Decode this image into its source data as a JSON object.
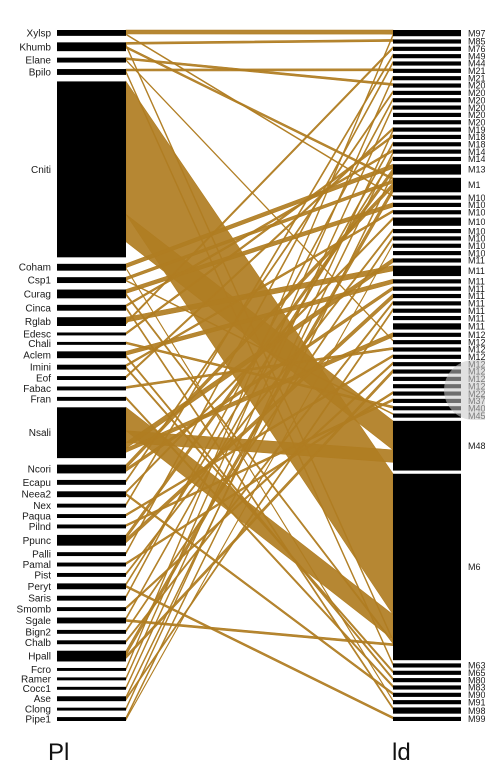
{
  "diagram": {
    "type": "bipartite-plot",
    "link_color": "#b07d22",
    "bar_color": "#000000",
    "left_title": "Pl",
    "right_title": "ld",
    "left_nodes": [
      {
        "name": "Xylsp",
        "size": 0.3
      },
      {
        "name": "Khumb",
        "size": 0.45
      },
      {
        "name": "Elane",
        "size": 0.25
      },
      {
        "name": "Bpilo",
        "size": 0.3
      },
      {
        "name": "Cniti",
        "size": 9.0
      },
      {
        "name": "Coham",
        "size": 0.35
      },
      {
        "name": "Csp1",
        "size": 0.3
      },
      {
        "name": "Curag",
        "size": 0.45
      },
      {
        "name": "Cinca",
        "size": 0.3
      },
      {
        "name": "Rglab",
        "size": 0.45
      },
      {
        "name": "Edesc",
        "size": 0.15
      },
      {
        "name": "Chali",
        "size": 0.15
      },
      {
        "name": "Aclem",
        "size": 0.35
      },
      {
        "name": "Imini",
        "size": 0.25
      },
      {
        "name": "Eof",
        "size": 0.2
      },
      {
        "name": "Fabac",
        "size": 0.2
      },
      {
        "name": "Fran",
        "size": 0.2
      },
      {
        "name": "Nsali",
        "size": 2.6
      },
      {
        "name": "Ncori",
        "size": 0.45
      },
      {
        "name": "Ecapu",
        "size": 0.25
      },
      {
        "name": "Neea2",
        "size": 0.3
      },
      {
        "name": "Nex",
        "size": 0.2
      },
      {
        "name": "Paqua",
        "size": 0.2
      },
      {
        "name": "Pilnd",
        "size": 0.2
      },
      {
        "name": "Ppunc",
        "size": 0.55
      },
      {
        "name": "Palli",
        "size": 0.2
      },
      {
        "name": "Pamal",
        "size": 0.2
      },
      {
        "name": "Pist",
        "size": 0.2
      },
      {
        "name": "Peryt",
        "size": 0.3
      },
      {
        "name": "Saris",
        "size": 0.25
      },
      {
        "name": "Smomb",
        "size": 0.2
      },
      {
        "name": "Sgale",
        "size": 0.3
      },
      {
        "name": "Bign2",
        "size": 0.2
      },
      {
        "name": "Chalb",
        "size": 0.2
      },
      {
        "name": "Hpall",
        "size": 0.55
      },
      {
        "name": "Fcro",
        "size": 0.15
      },
      {
        "name": "Ramer",
        "size": 0.15
      },
      {
        "name": "Cocc1",
        "size": 0.15
      },
      {
        "name": "Ase",
        "size": 0.25
      },
      {
        "name": "Clong",
        "size": 0.15
      },
      {
        "name": "Pipe1",
        "size": 0.2
      }
    ],
    "right_nodes": [
      {
        "name": "M97",
        "size": 0.3
      },
      {
        "name": "M85",
        "size": 0.2
      },
      {
        "name": "M76",
        "size": 0.2
      },
      {
        "name": "M49",
        "size": 0.2
      },
      {
        "name": "M44",
        "size": 0.2
      },
      {
        "name": "M21",
        "size": 0.2
      },
      {
        "name": "M21",
        "size": 0.2
      },
      {
        "name": "M20",
        "size": 0.2
      },
      {
        "name": "M20",
        "size": 0.2
      },
      {
        "name": "M20",
        "size": 0.2
      },
      {
        "name": "M20",
        "size": 0.2
      },
      {
        "name": "M20",
        "size": 0.2
      },
      {
        "name": "M20",
        "size": 0.2
      },
      {
        "name": "M19",
        "size": 0.2
      },
      {
        "name": "M18",
        "size": 0.2
      },
      {
        "name": "M18",
        "size": 0.2
      },
      {
        "name": "M14",
        "size": 0.2
      },
      {
        "name": "M14",
        "size": 0.2
      },
      {
        "name": "M13",
        "size": 0.5
      },
      {
        "name": "M1",
        "size": 0.7
      },
      {
        "name": "M10",
        "size": 0.2
      },
      {
        "name": "M10",
        "size": 0.2
      },
      {
        "name": "M10",
        "size": 0.2
      },
      {
        "name": "M10",
        "size": 0.4
      },
      {
        "name": "M10",
        "size": 0.2
      },
      {
        "name": "M10",
        "size": 0.2
      },
      {
        "name": "M10",
        "size": 0.2
      },
      {
        "name": "M10",
        "size": 0.2
      },
      {
        "name": "M11",
        "size": 0.2
      },
      {
        "name": "M11",
        "size": 0.5
      },
      {
        "name": "M11",
        "size": 0.2
      },
      {
        "name": "M11",
        "size": 0.2
      },
      {
        "name": "M11",
        "size": 0.2
      },
      {
        "name": "M11",
        "size": 0.2
      },
      {
        "name": "M11",
        "size": 0.2
      },
      {
        "name": "M11",
        "size": 0.2
      },
      {
        "name": "M11",
        "size": 0.3
      },
      {
        "name": "M12",
        "size": 0.2
      },
      {
        "name": "M12",
        "size": 0.2
      },
      {
        "name": "M12",
        "size": 0.2
      },
      {
        "name": "M12",
        "size": 0.2
      },
      {
        "name": "M12",
        "size": 0.2
      },
      {
        "name": "M12",
        "size": 0.2
      },
      {
        "name": "M12",
        "size": 0.2
      },
      {
        "name": "M12",
        "size": 0.2
      },
      {
        "name": "M22",
        "size": 0.2
      },
      {
        "name": "M37",
        "size": 0.2
      },
      {
        "name": "M40",
        "size": 0.2
      },
      {
        "name": "M45",
        "size": 0.2
      },
      {
        "name": "M48",
        "size": 2.4
      },
      {
        "name": "M6",
        "size": 9.0
      },
      {
        "name": "M63",
        "size": 0.2
      },
      {
        "name": "M65",
        "size": 0.2
      },
      {
        "name": "M80",
        "size": 0.2
      },
      {
        "name": "M83",
        "size": 0.2
      },
      {
        "name": "M90",
        "size": 0.2
      },
      {
        "name": "M91",
        "size": 0.2
      },
      {
        "name": "M98",
        "size": 0.3
      },
      {
        "name": "M99",
        "size": 0.2
      }
    ],
    "links": [
      {
        "from": "Cniti",
        "to": "M6",
        "weight": 6.8
      },
      {
        "from": "Cniti",
        "to": "M48",
        "weight": 1.4
      },
      {
        "from": "Nsali",
        "to": "M6",
        "weight": 1.2
      },
      {
        "from": "Nsali",
        "to": "M48",
        "weight": 0.6
      },
      {
        "from": "Nsali",
        "to": "M11",
        "weight": 0.3
      },
      {
        "from": "Nsali",
        "to": "M12",
        "weight": 0.2
      },
      {
        "from": "Xylsp",
        "to": "M97",
        "weight": 0.2
      },
      {
        "from": "Xylsp",
        "to": "M10",
        "weight": 0.05
      },
      {
        "from": "Khumb",
        "to": "M85",
        "weight": 0.1
      },
      {
        "from": "Khumb",
        "to": "M6",
        "weight": 0.1
      },
      {
        "from": "Khumb",
        "to": "M1",
        "weight": 0.1
      },
      {
        "from": "Elane",
        "to": "M20",
        "weight": 0.1
      },
      {
        "from": "Elane",
        "to": "M12",
        "weight": 0.05
      },
      {
        "from": "Bpilo",
        "to": "M21",
        "weight": 0.1
      },
      {
        "from": "Bpilo",
        "to": "M63",
        "weight": 0.1
      },
      {
        "from": "Coham",
        "to": "M13",
        "weight": 0.2
      },
      {
        "from": "Coham",
        "to": "M91",
        "weight": 0.05
      },
      {
        "from": "Csp1",
        "to": "M1",
        "weight": 0.15
      },
      {
        "from": "Csp1",
        "to": "M45",
        "weight": 0.05
      },
      {
        "from": "Curag",
        "to": "M10",
        "weight": 0.2
      },
      {
        "from": "Curag",
        "to": "M6",
        "weight": 0.1
      },
      {
        "from": "Cinca",
        "to": "M14",
        "weight": 0.1
      },
      {
        "from": "Cinca",
        "to": "M98",
        "weight": 0.1
      },
      {
        "from": "Rglab",
        "to": "M11",
        "weight": 0.25
      },
      {
        "from": "Rglab",
        "to": "M76",
        "weight": 0.1
      },
      {
        "from": "Edesc",
        "to": "M18",
        "weight": 0.1
      },
      {
        "from": "Chali",
        "to": "M40",
        "weight": 0.1
      },
      {
        "from": "Aclem",
        "to": "M11",
        "weight": 0.2
      },
      {
        "from": "Aclem",
        "to": "M80",
        "weight": 0.1
      },
      {
        "from": "Imini",
        "to": "M10",
        "weight": 0.1
      },
      {
        "from": "Imini",
        "to": "M65",
        "weight": 0.1
      },
      {
        "from": "Eof",
        "to": "M19",
        "weight": 0.1
      },
      {
        "from": "Fabac",
        "to": "M12",
        "weight": 0.1
      },
      {
        "from": "Fran",
        "to": "M83",
        "weight": 0.1
      },
      {
        "from": "Ncori",
        "to": "M1",
        "weight": 0.2
      },
      {
        "from": "Ncori",
        "to": "M11",
        "weight": 0.15
      },
      {
        "from": "Ecapu",
        "to": "M20",
        "weight": 0.1
      },
      {
        "from": "Neea2",
        "to": "M10",
        "weight": 0.1
      },
      {
        "from": "Neea2",
        "to": "M90",
        "weight": 0.1
      },
      {
        "from": "Nex",
        "to": "M49",
        "weight": 0.1
      },
      {
        "from": "Paqua",
        "to": "M12",
        "weight": 0.1
      },
      {
        "from": "Pilnd",
        "to": "M37",
        "weight": 0.1
      },
      {
        "from": "Ppunc",
        "to": "M13",
        "weight": 0.2
      },
      {
        "from": "Ppunc",
        "to": "M11",
        "weight": 0.2
      },
      {
        "from": "Palli",
        "to": "M44",
        "weight": 0.1
      },
      {
        "from": "Pamal",
        "to": "M22",
        "weight": 0.1
      },
      {
        "from": "Pist",
        "to": "M10",
        "weight": 0.1
      },
      {
        "from": "Peryt",
        "to": "M14",
        "weight": 0.1
      },
      {
        "from": "Peryt",
        "to": "M99",
        "weight": 0.1
      },
      {
        "from": "Saris",
        "to": "M20",
        "weight": 0.1
      },
      {
        "from": "Smomb",
        "to": "M12",
        "weight": 0.1
      },
      {
        "from": "Sgale",
        "to": "M18",
        "weight": 0.1
      },
      {
        "from": "Sgale",
        "to": "M6",
        "weight": 0.1
      },
      {
        "from": "Bign2",
        "to": "M10",
        "weight": 0.1
      },
      {
        "from": "Chalb",
        "to": "M11",
        "weight": 0.1
      },
      {
        "from": "Hpall",
        "to": "M1",
        "weight": 0.25
      },
      {
        "from": "Hpall",
        "to": "M12",
        "weight": 0.15
      },
      {
        "from": "Fcro",
        "to": "M97",
        "weight": 0.1
      },
      {
        "from": "Ramer",
        "to": "M21",
        "weight": 0.1
      },
      {
        "from": "Cocc1",
        "to": "M20",
        "weight": 0.1
      },
      {
        "from": "Ase",
        "to": "M14",
        "weight": 0.1
      },
      {
        "from": "Ase",
        "to": "M11",
        "weight": 0.1
      },
      {
        "from": "Clong",
        "to": "M19",
        "weight": 0.1
      },
      {
        "from": "Pipe1",
        "to": "M13",
        "weight": 0.1
      },
      {
        "from": "Pipe1",
        "to": "M10",
        "weight": 0.05
      }
    ]
  }
}
